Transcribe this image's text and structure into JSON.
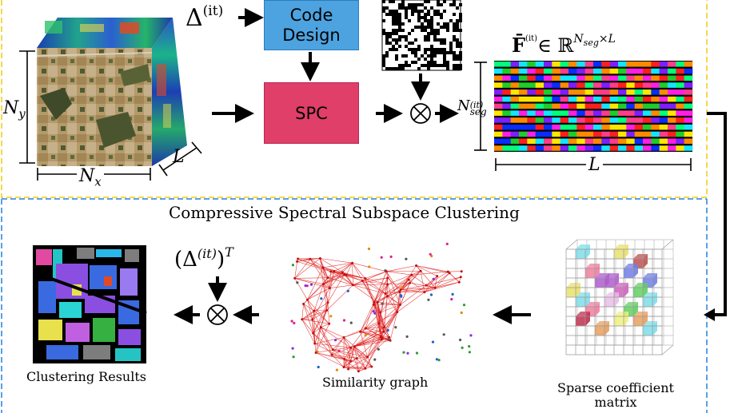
{
  "top_panel": {
    "delta_label": "Δ",
    "delta_superscript": "(it)",
    "code_design_label": "Code\nDesign",
    "spc_label": "SPC",
    "cube_ny_label": "N",
    "cube_ny_sub": "y",
    "cube_nx_label": "N",
    "cube_nx_sub": "x",
    "cube_l_label": "L",
    "matrix_title_symbol": "F̄",
    "matrix_title_sup": "(it)",
    "matrix_title_in": "∈ ℝ",
    "matrix_title_exp_base": "N",
    "matrix_title_exp_sub": "seg",
    "matrix_title_exp_tail": "×L",
    "matrix_rows_label": "N",
    "matrix_rows_sup": "(it)",
    "matrix_rows_sub": "seg",
    "matrix_cols_label": "L",
    "border_color": "#f5d84a"
  },
  "bottom_panel": {
    "title": "Compressive Spectral Subspace Clustering",
    "delta_t_label": "(Δ",
    "delta_t_sup": "(it)",
    "delta_t_tail": ")",
    "delta_t_T": "T",
    "clustering_results_label": "Clustering Results",
    "similarity_graph_label": "Similarity graph",
    "sparse_matrix_label": "Sparse coefficient\nmatrix",
    "border_color": "#5aa0e6"
  },
  "colors": {
    "graph_edge": "#e02020",
    "code_design_fill": "#4da3e0",
    "spc_fill": "#df3f68"
  }
}
